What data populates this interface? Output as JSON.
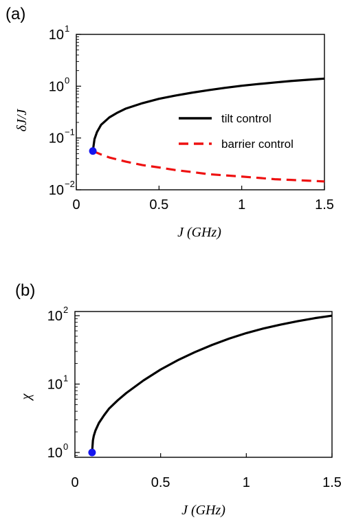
{
  "chart_data": [
    {
      "panel_label": "(a)",
      "type": "line",
      "xlabel": "J (GHz)",
      "ylabel": "δJ/J",
      "xlim": [
        0,
        1.5
      ],
      "ylim": [
        0.01,
        10
      ],
      "yscale": "log",
      "x_ticks": [
        "0",
        "0.5",
        "1",
        "1.5"
      ],
      "y_ticks": [
        {
          "base": "10",
          "exp": "1",
          "value": 10
        },
        {
          "base": "10",
          "exp": "0",
          "value": 1
        },
        {
          "base": "10",
          "exp": "−1",
          "value": 0.1
        },
        {
          "base": "10",
          "exp": "−2",
          "value": 0.01
        }
      ],
      "legend_position": "center-right",
      "series": [
        {
          "name": "tilt control",
          "color": "#000000",
          "style": "solid",
          "x": [
            0.1,
            0.11,
            0.125,
            0.15,
            0.2,
            0.25,
            0.3,
            0.4,
            0.5,
            0.6,
            0.7,
            0.8,
            0.9,
            1.0,
            1.1,
            1.2,
            1.3,
            1.4,
            1.5
          ],
          "y": [
            0.056,
            0.095,
            0.13,
            0.18,
            0.25,
            0.31,
            0.37,
            0.47,
            0.57,
            0.66,
            0.75,
            0.84,
            0.93,
            1.02,
            1.1,
            1.18,
            1.26,
            1.33,
            1.4
          ]
        },
        {
          "name": "barrier control",
          "color": "#ee1111",
          "style": "dashed",
          "x": [
            0.1,
            0.15,
            0.2,
            0.3,
            0.4,
            0.5,
            0.6,
            0.7,
            0.8,
            0.9,
            1.0,
            1.1,
            1.2,
            1.3,
            1.4,
            1.5
          ],
          "y": [
            0.056,
            0.048,
            0.042,
            0.035,
            0.03,
            0.027,
            0.024,
            0.022,
            0.02,
            0.019,
            0.018,
            0.017,
            0.016,
            0.0155,
            0.015,
            0.0145
          ]
        }
      ],
      "marker": {
        "x": 0.1,
        "y": 0.056,
        "color": "#1515ee"
      }
    },
    {
      "panel_label": "(b)",
      "type": "line",
      "xlabel": "J (GHz)",
      "ylabel": "χ",
      "xlim": [
        0.0,
        1.5
      ],
      "ylim": [
        0.85,
        115
      ],
      "yscale": "log",
      "x_ticks": [
        "0",
        "0.5",
        "1",
        "1.5"
      ],
      "y_ticks": [
        {
          "base": "10",
          "exp": "2",
          "value": 100
        },
        {
          "base": "10",
          "exp": "1",
          "value": 10
        },
        {
          "base": "10",
          "exp": "0",
          "value": 1
        }
      ],
      "series": [
        {
          "name": "",
          "color": "#000000",
          "style": "solid",
          "x": [
            0.1,
            0.105,
            0.11,
            0.12,
            0.14,
            0.17,
            0.2,
            0.25,
            0.3,
            0.4,
            0.5,
            0.6,
            0.7,
            0.8,
            0.9,
            1.0,
            1.1,
            1.2,
            1.3,
            1.4,
            1.5
          ],
          "y": [
            1.0,
            1.5,
            1.75,
            2.1,
            2.7,
            3.5,
            4.4,
            5.8,
            7.4,
            11.3,
            16.3,
            22.3,
            29.3,
            37.3,
            46.2,
            55.6,
            65.0,
            74.0,
            83.0,
            92.0,
            100.0
          ]
        }
      ],
      "marker": {
        "x": 0.1,
        "y": 1.0,
        "color": "#1515ee"
      }
    }
  ]
}
